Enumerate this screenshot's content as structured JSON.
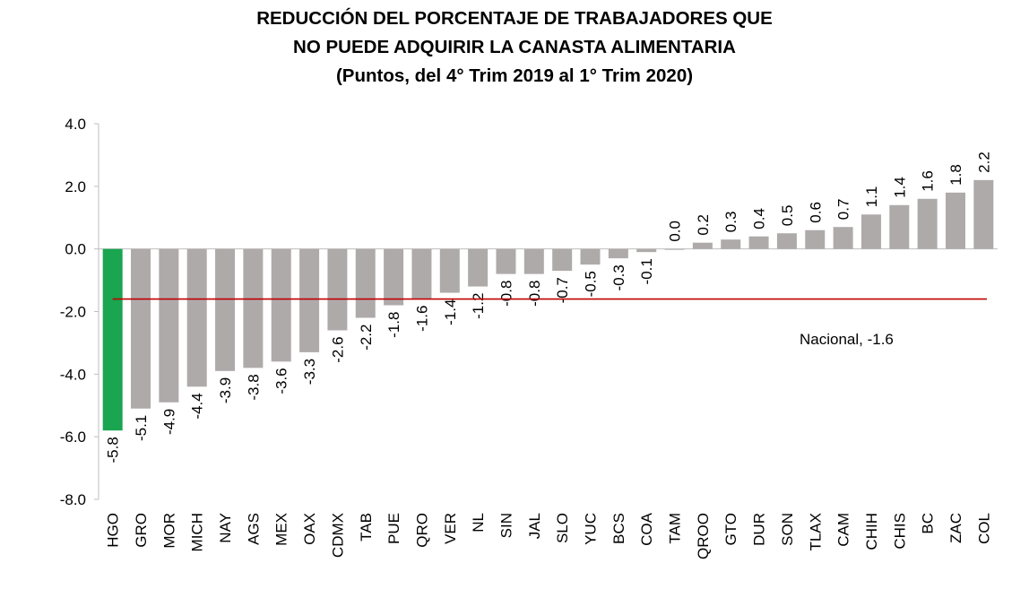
{
  "chart_data": {
    "type": "bar",
    "title_lines": [
      "REDUCCIÓN DEL PORCENTAJE DE TRABAJADORES QUE",
      "NO PUEDE ADQUIRIR LA CANASTA ALIMENTARIA",
      "(Puntos, del 4° Trim 2019 al 1° Trim 2020)"
    ],
    "categories": [
      "HGO",
      "GRO",
      "MOR",
      "MICH",
      "NAY",
      "AGS",
      "MEX",
      "OAX",
      "CDMX",
      "TAB",
      "PUE",
      "QRO",
      "VER",
      "NL",
      "SIN",
      "JAL",
      "SLO",
      "YUC",
      "BCS",
      "COA",
      "TAM",
      "QROO",
      "GTO",
      "DUR",
      "SON",
      "TLAX",
      "CAM",
      "CHIH",
      "CHIS",
      "BC",
      "ZAC",
      "COL"
    ],
    "values": [
      -5.8,
      -5.1,
      -4.9,
      -4.4,
      -3.9,
      -3.8,
      -3.6,
      -3.3,
      -2.6,
      -2.2,
      -1.8,
      -1.6,
      -1.4,
      -1.2,
      -0.8,
      -0.8,
      -0.7,
      -0.5,
      -0.3,
      -0.1,
      0.0,
      0.2,
      0.3,
      0.4,
      0.5,
      0.6,
      0.7,
      1.1,
      1.4,
      1.6,
      1.8,
      2.2
    ],
    "label_values": [
      "-5.8",
      "-5.1",
      "-4.9",
      "-4.4",
      "-3.9",
      "-3.8",
      "-3.6",
      "-3.3",
      "-2.6",
      "-2.2",
      "-1.8",
      "-1.6",
      "-1.4",
      "-1.2",
      "-0.8",
      "-0.8",
      "-0.7",
      "-0.5",
      "-0.3",
      "-0.1",
      "0.0",
      "0.2",
      "0.3",
      "0.4",
      "0.5",
      "0.6",
      "0.7",
      "1.1",
      "1.4",
      "1.6",
      "1.8",
      "2.2"
    ],
    "highlight_index": 0,
    "ylim": [
      -8,
      4
    ],
    "yticks": [
      "4.0",
      "2.0",
      "0.0",
      "-2.0",
      "-4.0",
      "-6.0",
      "-8.0"
    ],
    "grid": false,
    "reference_line": {
      "value": -1.6,
      "label": "Nacional, -1.6"
    },
    "colors": {
      "bar": "#afaaaa",
      "highlight": "#1aa550",
      "reference_line": "#c00000",
      "axis": "#bfbfbf"
    }
  }
}
